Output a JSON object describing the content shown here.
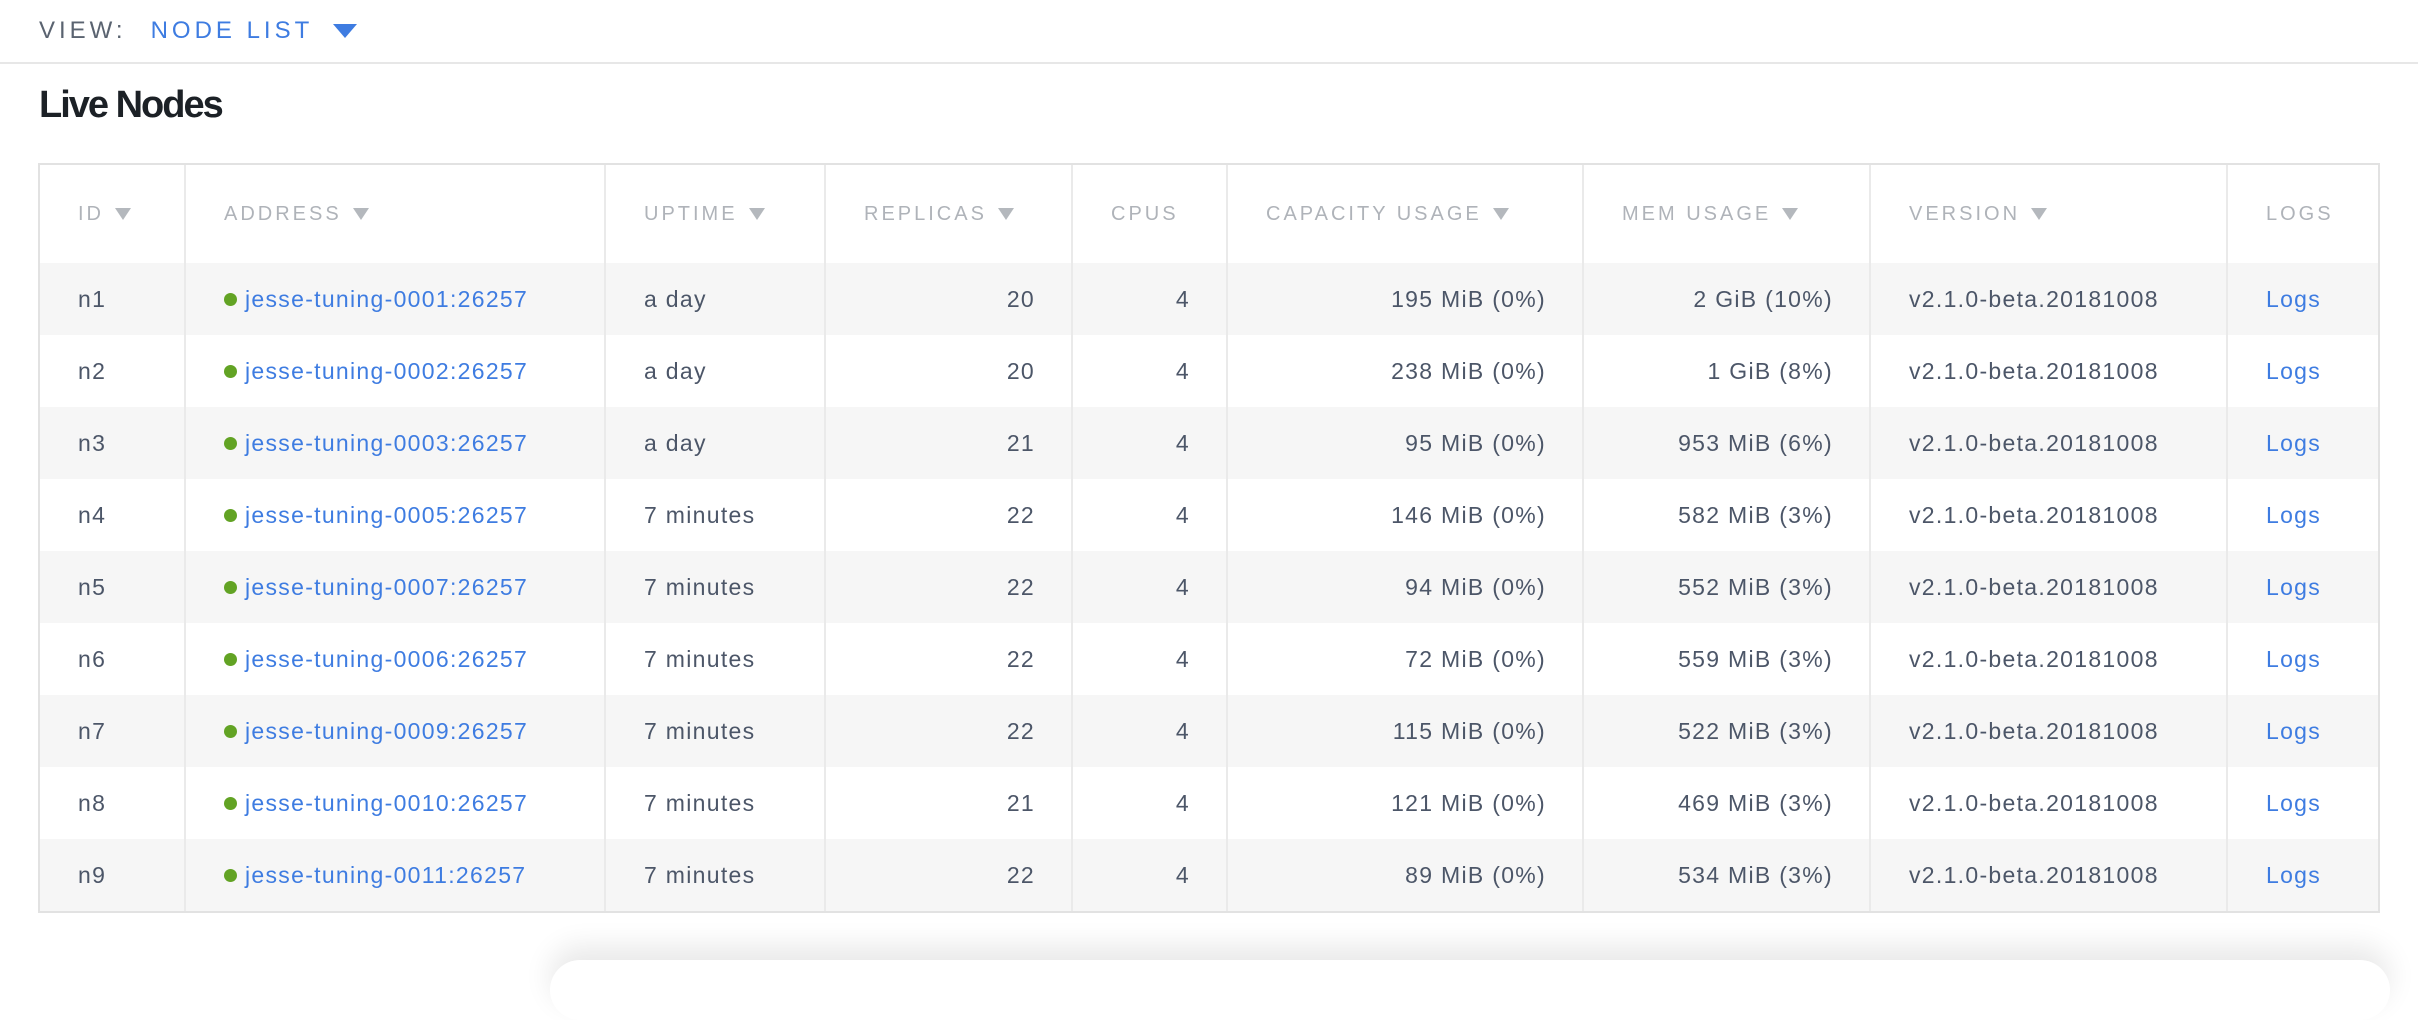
{
  "view_bar": {
    "label": "VIEW:",
    "selected": "NODE LIST"
  },
  "page": {
    "title": "Live Nodes"
  },
  "table": {
    "columns": [
      {
        "key": "id",
        "label": "ID",
        "sortable": true
      },
      {
        "key": "address",
        "label": "ADDRESS",
        "sortable": true
      },
      {
        "key": "uptime",
        "label": "UPTIME",
        "sortable": true
      },
      {
        "key": "replicas",
        "label": "REPLICAS",
        "sortable": true
      },
      {
        "key": "cpus",
        "label": "CPUS",
        "sortable": false
      },
      {
        "key": "capacity",
        "label": "CAPACITY USAGE",
        "sortable": true
      },
      {
        "key": "mem",
        "label": "MEM USAGE",
        "sortable": true
      },
      {
        "key": "version",
        "label": "VERSION",
        "sortable": true
      },
      {
        "key": "logs",
        "label": "LOGS",
        "sortable": false
      }
    ],
    "rows": [
      {
        "id": "n1",
        "address": "jesse-tuning-0001:26257",
        "uptime": "a day",
        "replicas": "20",
        "cpus": "4",
        "capacity": "195 MiB (0%)",
        "mem": "2 GiB (10%)",
        "version": "v2.1.0-beta.20181008",
        "logs": "Logs"
      },
      {
        "id": "n2",
        "address": "jesse-tuning-0002:26257",
        "uptime": "a day",
        "replicas": "20",
        "cpus": "4",
        "capacity": "238 MiB (0%)",
        "mem": "1 GiB (8%)",
        "version": "v2.1.0-beta.20181008",
        "logs": "Logs"
      },
      {
        "id": "n3",
        "address": "jesse-tuning-0003:26257",
        "uptime": "a day",
        "replicas": "21",
        "cpus": "4",
        "capacity": "95 MiB (0%)",
        "mem": "953 MiB (6%)",
        "version": "v2.1.0-beta.20181008",
        "logs": "Logs"
      },
      {
        "id": "n4",
        "address": "jesse-tuning-0005:26257",
        "uptime": "7 minutes",
        "replicas": "22",
        "cpus": "4",
        "capacity": "146 MiB (0%)",
        "mem": "582 MiB (3%)",
        "version": "v2.1.0-beta.20181008",
        "logs": "Logs"
      },
      {
        "id": "n5",
        "address": "jesse-tuning-0007:26257",
        "uptime": "7 minutes",
        "replicas": "22",
        "cpus": "4",
        "capacity": "94 MiB (0%)",
        "mem": "552 MiB (3%)",
        "version": "v2.1.0-beta.20181008",
        "logs": "Logs"
      },
      {
        "id": "n6",
        "address": "jesse-tuning-0006:26257",
        "uptime": "7 minutes",
        "replicas": "22",
        "cpus": "4",
        "capacity": "72 MiB (0%)",
        "mem": "559 MiB (3%)",
        "version": "v2.1.0-beta.20181008",
        "logs": "Logs"
      },
      {
        "id": "n7",
        "address": "jesse-tuning-0009:26257",
        "uptime": "7 minutes",
        "replicas": "22",
        "cpus": "4",
        "capacity": "115 MiB (0%)",
        "mem": "522 MiB (3%)",
        "version": "v2.1.0-beta.20181008",
        "logs": "Logs"
      },
      {
        "id": "n8",
        "address": "jesse-tuning-0010:26257",
        "uptime": "7 minutes",
        "replicas": "21",
        "cpus": "4",
        "capacity": "121 MiB (0%)",
        "mem": "469 MiB (3%)",
        "version": "v2.1.0-beta.20181008",
        "logs": "Logs"
      },
      {
        "id": "n9",
        "address": "jesse-tuning-0011:26257",
        "uptime": "7 minutes",
        "replicas": "22",
        "cpus": "4",
        "capacity": "89 MiB (0%)",
        "mem": "534 MiB (3%)",
        "version": "v2.1.0-beta.20181008",
        "logs": "Logs"
      }
    ]
  },
  "colors": {
    "link_blue": "#3e7ce1",
    "live_dot_green": "#62a324",
    "header_gray": "#afb3b9",
    "cell_slate": "#4c5668",
    "row_stripe": "#f6f6f6"
  },
  "icons": {
    "view_dropdown": "caret-down",
    "sort": "caret-down",
    "node_status": "green-dot"
  }
}
